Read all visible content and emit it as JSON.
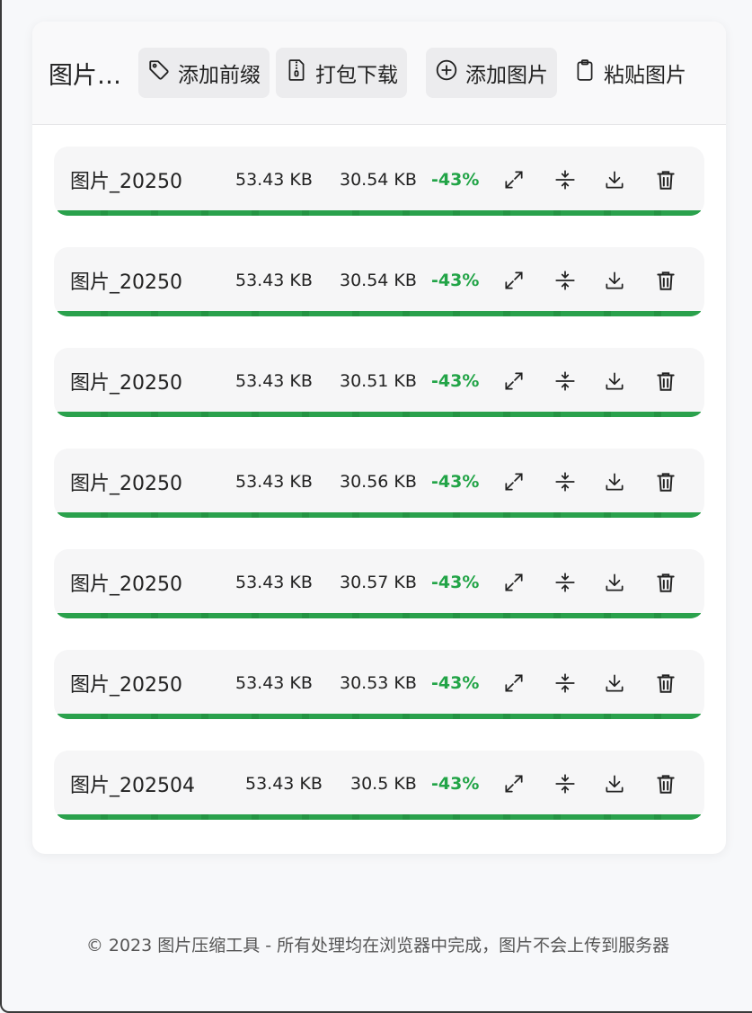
{
  "header": {
    "title": "图片压缩",
    "buttons": [
      {
        "label": "添加前缀",
        "icon": "tag-icon"
      },
      {
        "label": "打包下载",
        "icon": "zip-file-icon"
      },
      {
        "label": "添加图片",
        "icon": "plus-circle-icon"
      },
      {
        "label": "粘贴图片",
        "icon": "clipboard-icon"
      }
    ]
  },
  "files": [
    {
      "name": "图片_20250",
      "original_size": "53.43 KB",
      "compressed_size": "30.54 KB",
      "ratio": "-43%",
      "progress": 1.0
    },
    {
      "name": "图片_20250",
      "original_size": "53.43 KB",
      "compressed_size": "30.54 KB",
      "ratio": "-43%",
      "progress": 1.0
    },
    {
      "name": "图片_20250",
      "original_size": "53.43 KB",
      "compressed_size": "30.51 KB",
      "ratio": "-43%",
      "progress": 1.0
    },
    {
      "name": "图片_20250",
      "original_size": "53.43 KB",
      "compressed_size": "30.56 KB",
      "ratio": "-43%",
      "progress": 1.0
    },
    {
      "name": "图片_20250",
      "original_size": "53.43 KB",
      "compressed_size": "30.57 KB",
      "ratio": "-43%",
      "progress": 1.0
    },
    {
      "name": "图片_20250",
      "original_size": "53.43 KB",
      "compressed_size": "30.53 KB",
      "ratio": "-43%",
      "progress": 1.0
    },
    {
      "name": "图片_202504",
      "original_size": "53.43 KB",
      "compressed_size": "30.5 KB",
      "ratio": "-43%",
      "progress": 1.0
    }
  ],
  "row_actions": [
    "expand-icon",
    "compress-icon",
    "download-icon",
    "trash-icon"
  ],
  "footer": {
    "text": "© 2023 图片压缩工具 - 所有处理均在浏览器中完成，图片不会上传到服务器"
  },
  "colors": {
    "accent_green": "#2aa14c",
    "ratio_green": "#22a447"
  }
}
